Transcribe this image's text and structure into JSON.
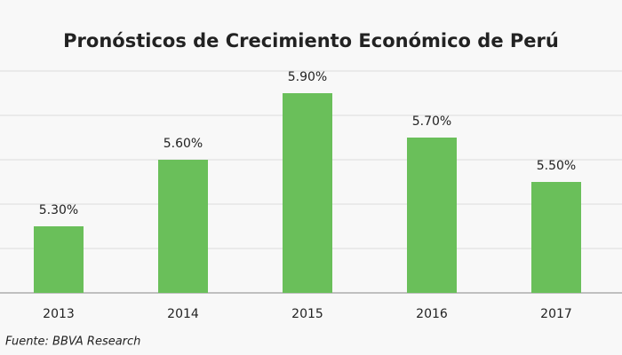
{
  "chart_data": {
    "type": "bar",
    "title": "Pronósticos de Crecimiento Económico de Perú",
    "categories": [
      "2013",
      "2014",
      "2015",
      "2016",
      "2017"
    ],
    "values": [
      5.3,
      5.6,
      5.9,
      5.7,
      5.5
    ],
    "value_labels": [
      "5.30%",
      "5.60%",
      "5.90%",
      "5.70%",
      "5.50%"
    ],
    "color": "#6abf5a",
    "ylim": [
      5.0,
      6.0
    ],
    "yticks": [
      5.0,
      5.2,
      5.4,
      5.6,
      5.8,
      6.0
    ],
    "grid": true,
    "source": "Fuente: BBVA Research"
  }
}
